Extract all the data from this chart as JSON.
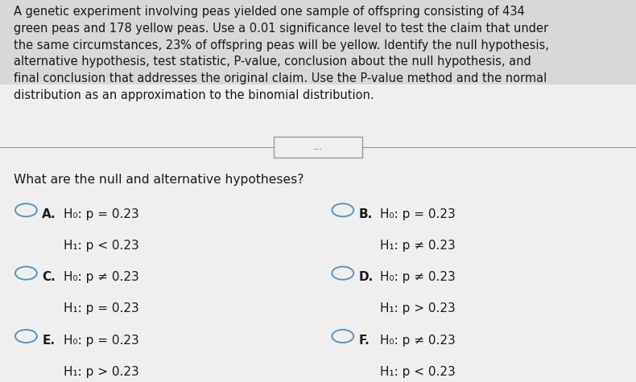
{
  "background_color": "#efefef",
  "top_bg_color": "#d8d8d8",
  "paragraph_text": "A genetic experiment involving peas yielded one sample of offspring consisting of 434\ngreen peas and 178 yellow peas. Use a 0.01 significance level to test the claim that under\nthe same circumstances, 23% of offspring peas will be yellow. Identify the null hypothesis,\nalternative hypothesis, test statistic, P-value, conclusion about the null hypothesis, and\nfinal conclusion that addresses the original claim. Use the P-value method and the normal\ndistribution as an approximation to the binomial distribution.",
  "question_text": "What are the null and alternative hypotheses?",
  "options": [
    {
      "label": "A.",
      "line1": "H₀: p = 0.23",
      "line2": "H₁: p < 0.23",
      "col": 0,
      "row": 0
    },
    {
      "label": "B.",
      "line1": "H₀: p = 0.23",
      "line2": "H₁: p ≠ 0.23",
      "col": 1,
      "row": 0
    },
    {
      "label": "C.",
      "line1": "H₀: p ≠ 0.23",
      "line2": "H₁: p = 0.23",
      "col": 0,
      "row": 1
    },
    {
      "label": "D.",
      "line1": "H₀: p ≠ 0.23",
      "line2": "H₁: p > 0.23",
      "col": 1,
      "row": 1
    },
    {
      "label": "E.",
      "line1": "H₀: p = 0.23",
      "line2": "H₁: p > 0.23",
      "col": 0,
      "row": 2
    },
    {
      "label": "F.",
      "line1": "H₀: p ≠ 0.23",
      "line2": "H₁: p < 0.23",
      "col": 1,
      "row": 2
    }
  ],
  "separator_dots": "...",
  "text_color": "#1a1a1a",
  "circle_color": "#4a90c4",
  "separator_color": "#999999",
  "font_size_paragraph": 10.5,
  "font_size_question": 11.2,
  "font_size_options": 11.0
}
